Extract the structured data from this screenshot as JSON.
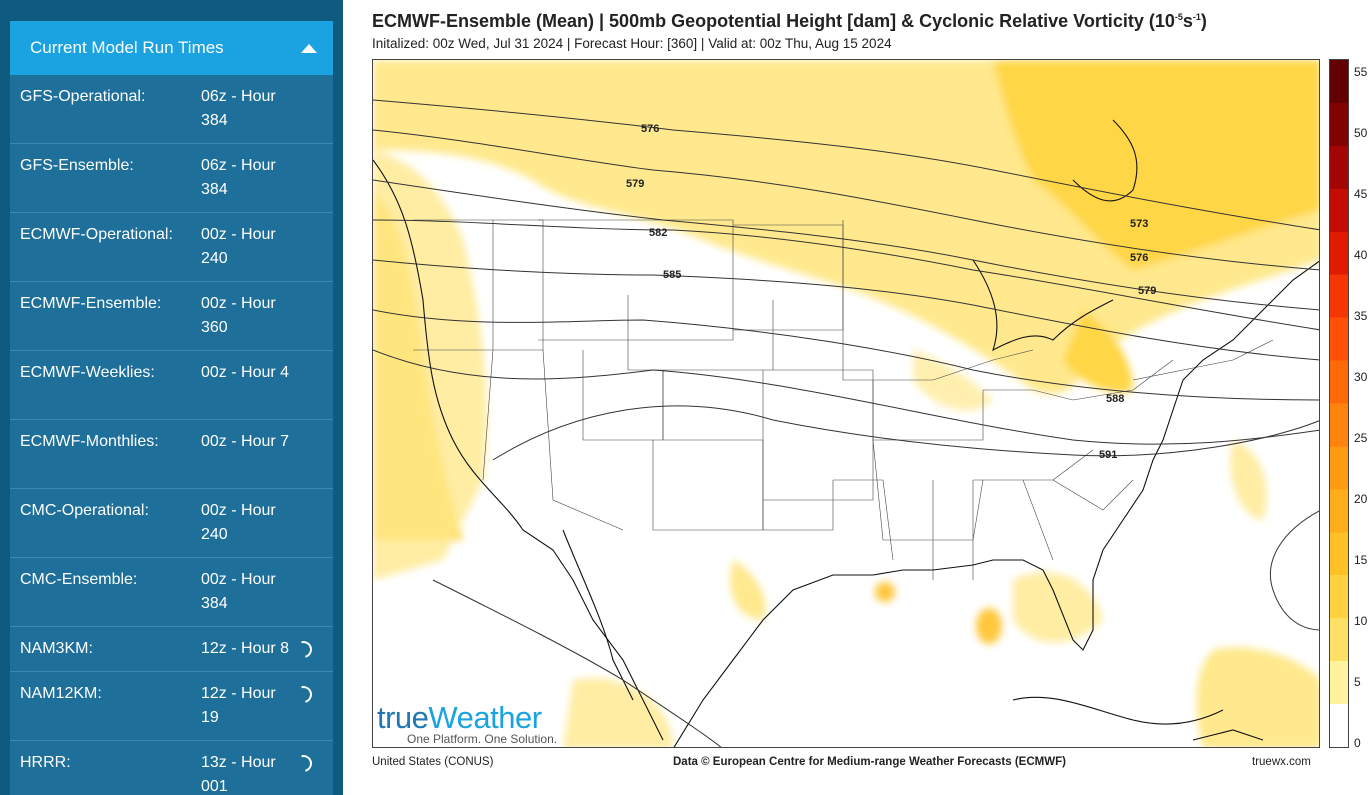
{
  "sidebar": {
    "header": "Current Model Run Times",
    "rows": [
      {
        "model": "GFS-Operational:",
        "run": "06z - Hour 384",
        "loading": false
      },
      {
        "model": "GFS-Ensemble:",
        "run": "06z - Hour 384",
        "loading": false
      },
      {
        "model": "ECMWF-Operational:",
        "run": "00z - Hour 240",
        "loading": false
      },
      {
        "model": "ECMWF-Ensemble:",
        "run": "00z - Hour 360",
        "loading": false
      },
      {
        "model": "ECMWF-Weeklies:",
        "run": "00z - Hour 4",
        "loading": false
      },
      {
        "model": "ECMWF-Monthlies:",
        "run": "00z - Hour 7",
        "loading": false
      },
      {
        "model": "CMC-Operational:",
        "run": "00z - Hour 240",
        "loading": false
      },
      {
        "model": "CMC-Ensemble:",
        "run": "00z - Hour 384",
        "loading": false
      },
      {
        "model": "NAM3KM:",
        "run": "12z - Hour 8",
        "loading": true
      },
      {
        "model": "NAM12KM:",
        "run": "12z - Hour 19",
        "loading": true
      },
      {
        "model": "HRRR:",
        "run": "13z - Hour 001",
        "loading": true
      }
    ]
  },
  "map": {
    "title": "ECMWF-Ensemble (Mean) | 500mb Geopotential Height [dam] & Cyclonic Relative Vorticity (10",
    "title_sup1": "-5",
    "title_mid": "s",
    "title_sup2": "-1",
    "title_end": ")",
    "subtitle": "Initalized: 00z Wed, Jul 31 2024  |  Forecast Hour: [360]  |  Valid at: 00z Thu, Aug 15 2024",
    "region": "United States (CONUS)",
    "credit": "Data © European Centre for Medium-range Weather Forecasts (ECMWF)",
    "site": "truewx.com",
    "logo_word_1": "true",
    "logo_word_2": "Weather",
    "logo_tagline": "One Platform. One Solution.",
    "contour_labels": [
      "576",
      "579",
      "582",
      "585",
      "573",
      "576",
      "579",
      "588",
      "591"
    ],
    "colorbar": {
      "labels": [
        "55",
        "50",
        "45",
        "40",
        "35",
        "30",
        "25",
        "20",
        "15",
        "10",
        "5",
        "0"
      ],
      "colors": [
        "#ffffff",
        "#fff3a0",
        "#ffe066",
        "#ffd23f",
        "#ffc125",
        "#ffae1a",
        "#ff9a12",
        "#ff830c",
        "#ff6a08",
        "#ff5005",
        "#f53503",
        "#e01b02",
        "#c40d02",
        "#a30602",
        "#820202",
        "#620101"
      ]
    }
  }
}
